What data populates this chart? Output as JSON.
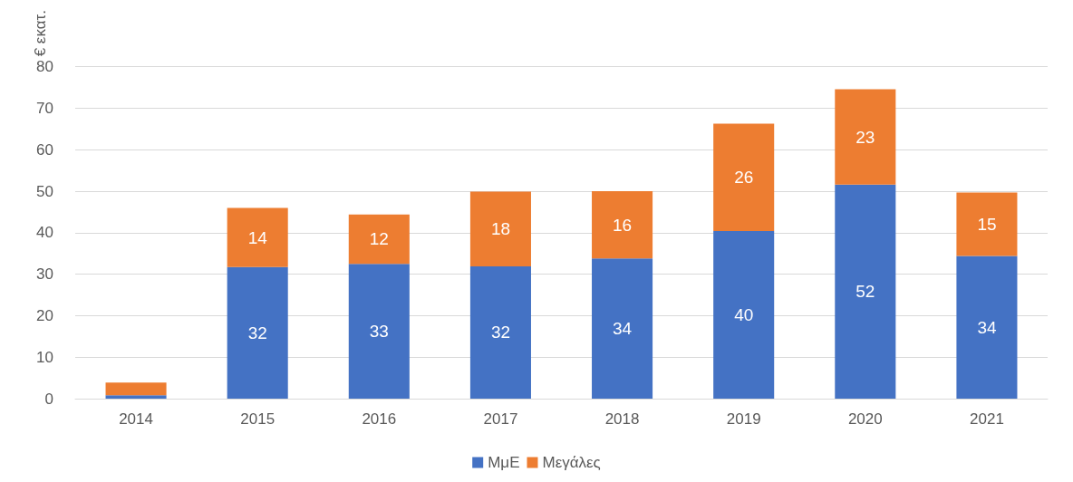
{
  "chart_data": {
    "type": "bar",
    "stacked": true,
    "ylabel": "€ εκατ.",
    "categories": [
      "2014",
      "2015",
      "2016",
      "2017",
      "2018",
      "2019",
      "2020",
      "2021"
    ],
    "series": [
      {
        "name": "ΜμΕ",
        "color": "#4472c4",
        "values": [
          0.8,
          31.7,
          32.5,
          31.9,
          33.8,
          40.4,
          51.6,
          34.4
        ],
        "value_labels": [
          null,
          "32",
          "33",
          "32",
          "34",
          "40",
          "52",
          "34"
        ]
      },
      {
        "name": "Μεγάλες",
        "color": "#ed7d31",
        "values": [
          3.1,
          14.3,
          11.9,
          18.0,
          16.2,
          25.9,
          23.0,
          15.3
        ],
        "value_labels": [
          null,
          "14",
          "12",
          "18",
          "16",
          "26",
          "23",
          "15"
        ]
      }
    ],
    "ylim": [
      0,
      80
    ],
    "yticks": [
      0,
      10,
      20,
      30,
      40,
      50,
      60,
      70,
      80
    ],
    "grid": "y",
    "legend": "bottom"
  }
}
